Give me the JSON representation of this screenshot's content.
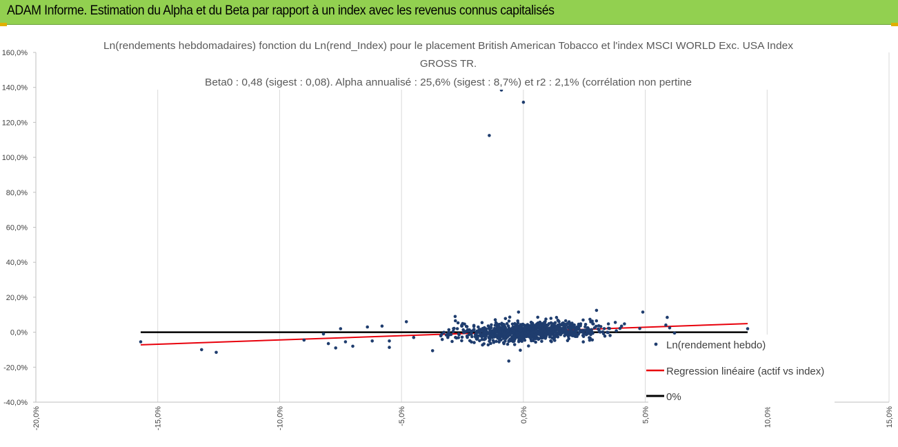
{
  "header": {
    "title": "ADAM Informe. Estimation du Alpha et du Beta par rapport à un index avec les revenus connus capitalisés",
    "bg_color": "#92d050"
  },
  "chart_data": {
    "type": "scatter",
    "title_lines": [
      "Ln(rendements hebdomadaires) fonction du Ln(rend_Index) pour le placement British American Tobacco  et l'index MSCI WORLD Exc. USA Index",
      "GROSS TR.",
      "Beta0 : 0,48 (sigest : 0,08). Alpha annualisé : 25,6% (sigest : 8,7%) et r2 : 2,1% (corrélation non pertine"
    ],
    "xlim": [
      -20,
      15
    ],
    "ylim": [
      -40,
      160
    ],
    "x_ticks": [
      -20,
      -15,
      -10,
      -5,
      0,
      5,
      10,
      15
    ],
    "x_tick_labels": [
      "-20,0%",
      "-15,0%",
      "-10,0%",
      "-5,0%",
      "0,0%",
      "5,0%",
      "10,0%",
      "15,0%"
    ],
    "y_ticks": [
      160,
      140,
      120,
      100,
      80,
      60,
      40,
      20,
      0,
      -20,
      -40
    ],
    "y_tick_labels": [
      "160,0%",
      "140,0%",
      "120,0%",
      "100,0%",
      "80,0%",
      "60,0%",
      "40,0%",
      "20,0%",
      "0,0%",
      "-20,0%",
      "-40,0%"
    ],
    "grid": "vertical",
    "series": [
      {
        "name": "Ln(rendement hebdo)",
        "kind": "scatter",
        "color": "#1f3d6e",
        "outliers": [
          {
            "x": -0.9,
            "y": 138.5
          },
          {
            "x": 0.0,
            "y": 131.5
          },
          {
            "x": -1.4,
            "y": 112.5
          },
          {
            "x": -0.6,
            "y": -16.5
          },
          {
            "x": -15.7,
            "y": -5.5
          },
          {
            "x": -13.2,
            "y": -10.0
          },
          {
            "x": -12.6,
            "y": -11.5
          },
          {
            "x": -9.0,
            "y": -4.5
          },
          {
            "x": -8.2,
            "y": -1.0
          },
          {
            "x": -8.0,
            "y": -6.5
          },
          {
            "x": -7.7,
            "y": -9.0
          },
          {
            "x": -7.5,
            "y": 2.0
          },
          {
            "x": -7.3,
            "y": -5.5
          },
          {
            "x": -7.0,
            "y": -8.0
          },
          {
            "x": -6.4,
            "y": 3.0
          },
          {
            "x": -6.2,
            "y": -5.0
          },
          {
            "x": -5.8,
            "y": 3.5
          },
          {
            "x": -5.5,
            "y": -5.0
          },
          {
            "x": -4.8,
            "y": 6.0
          },
          {
            "x": -4.5,
            "y": -3.0
          },
          {
            "x": -2.8,
            "y": 9.0
          },
          {
            "x": -0.2,
            "y": 11.5
          },
          {
            "x": 3.0,
            "y": 12.5
          },
          {
            "x": 4.9,
            "y": 11.5
          },
          {
            "x": 5.3,
            "y": -7.0
          },
          {
            "x": 5.9,
            "y": 8.5
          },
          {
            "x": 6.2,
            "y": -0.5
          },
          {
            "x": 6.0,
            "y": 2.5
          },
          {
            "x": 9.2,
            "y": 2.0
          }
        ],
        "cluster": {
          "n": 1000,
          "x_mean": 0.2,
          "x_sd": 1.45,
          "y_sd": 2.6,
          "beta": 0.48,
          "alpha": 0.3,
          "seed": 7
        }
      },
      {
        "name": "Regression linéaire (actif vs index)",
        "kind": "line",
        "color": "#e8000b",
        "points": [
          {
            "x": -15.7,
            "y": -7.2
          },
          {
            "x": 9.2,
            "y": 4.9
          }
        ]
      },
      {
        "name": "0%",
        "kind": "line",
        "color": "#000000",
        "points": [
          {
            "x": -15.7,
            "y": 0
          },
          {
            "x": 9.2,
            "y": 0
          }
        ]
      }
    ]
  }
}
